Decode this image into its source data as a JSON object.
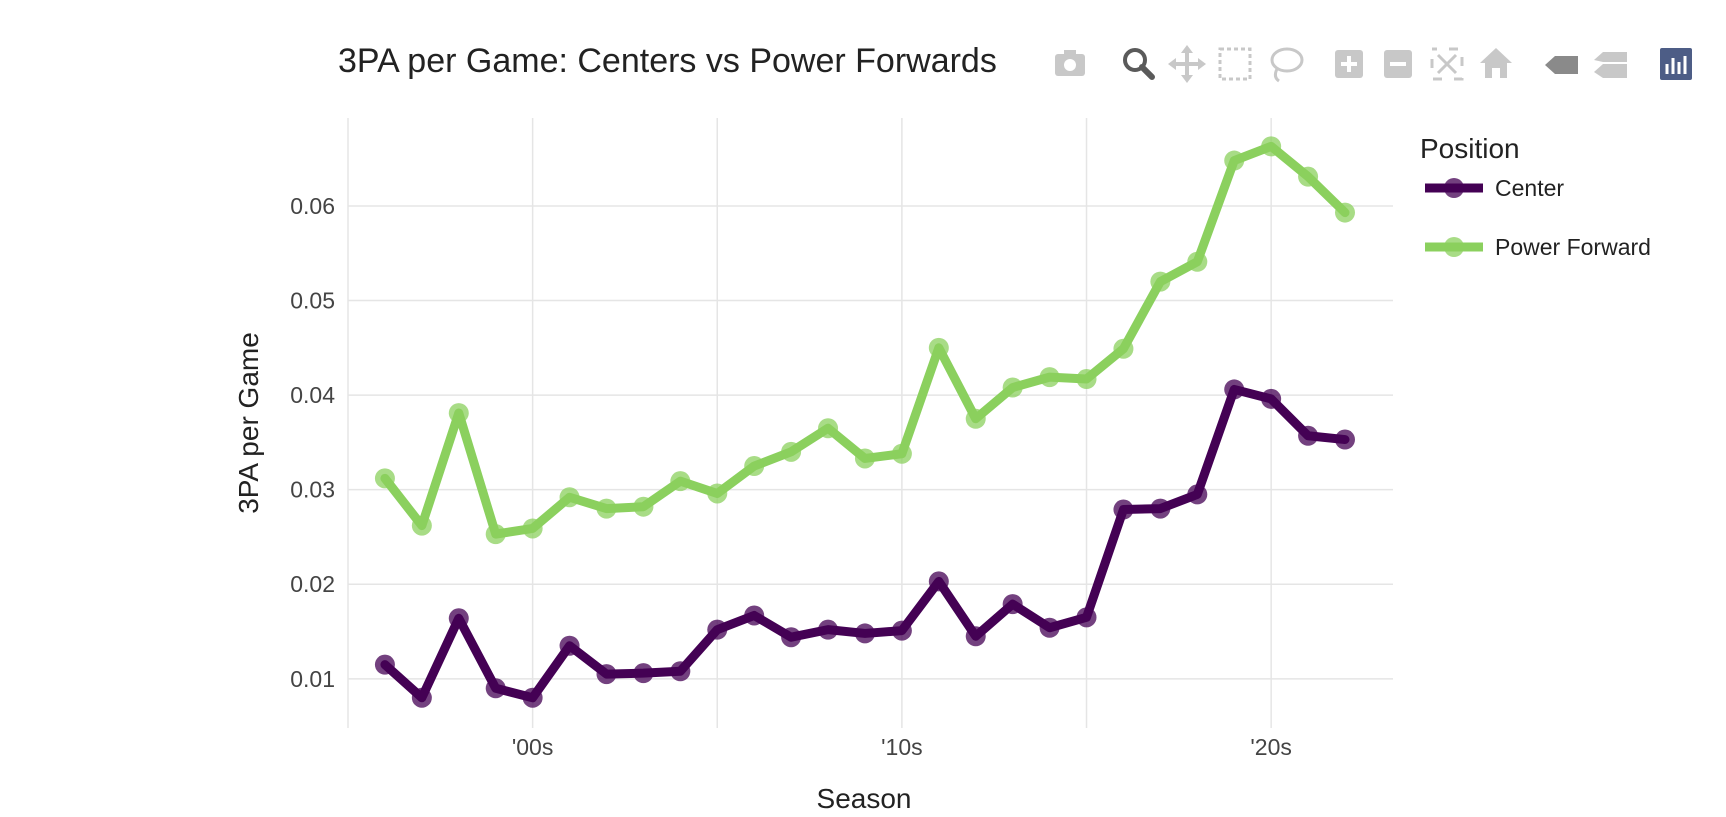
{
  "modebar": {
    "buttons": [
      {
        "name": "camera-icon",
        "title": "Download plot as a png"
      },
      {
        "name": "zoom-icon",
        "title": "Zoom"
      },
      {
        "name": "pan-icon",
        "title": "Pan"
      },
      {
        "name": "box-select-icon",
        "title": "Box Select"
      },
      {
        "name": "lasso-select-icon",
        "title": "Lasso Select"
      },
      {
        "name": "zoom-in-icon",
        "title": "Zoom in"
      },
      {
        "name": "zoom-out-icon",
        "title": "Zoom out"
      },
      {
        "name": "autoscale-icon",
        "title": "Autoscale"
      },
      {
        "name": "reset-axes-icon",
        "title": "Reset axes"
      },
      {
        "name": "hover-closest-icon",
        "title": "Show closest data on hover"
      },
      {
        "name": "hover-compare-icon",
        "title": "Compare data on hover"
      },
      {
        "name": "plotly-logo-icon",
        "title": "Produced with Plotly"
      }
    ]
  },
  "chart_data": {
    "type": "line",
    "title": "3PA per Game: Centers vs Power Forwards",
    "xlabel": "Season",
    "ylabel": "3PA per Game",
    "x": [
      1996,
      1997,
      1998,
      1999,
      2000,
      2001,
      2002,
      2003,
      2004,
      2005,
      2006,
      2007,
      2008,
      2009,
      2010,
      2011,
      2012,
      2013,
      2014,
      2015,
      2016,
      2017,
      2018,
      2019,
      2020,
      2021,
      2022
    ],
    "xlim": [
      1995,
      2023.3
    ],
    "ylim": [
      0.0048,
      0.0693
    ],
    "x_ticks": [
      {
        "value": 2000,
        "label": "'00s"
      },
      {
        "value": 2010,
        "label": "'10s"
      },
      {
        "value": 2020,
        "label": "'20s"
      }
    ],
    "x_grid": [
      1995,
      2000,
      2005,
      2010,
      2015,
      2020
    ],
    "y_ticks": [
      {
        "value": 0.01,
        "label": "0.01"
      },
      {
        "value": 0.02,
        "label": "0.02"
      },
      {
        "value": 0.03,
        "label": "0.03"
      },
      {
        "value": 0.04,
        "label": "0.04"
      },
      {
        "value": 0.05,
        "label": "0.05"
      },
      {
        "value": 0.06,
        "label": "0.06"
      }
    ],
    "grid": true,
    "legend": {
      "title": "Position",
      "placement": "right"
    },
    "series": [
      {
        "name": "Center",
        "color": "#440154",
        "values": [
          0.0115,
          0.008,
          0.0164,
          0.009,
          0.008,
          0.0135,
          0.0105,
          0.0106,
          0.0108,
          0.0152,
          0.0167,
          0.0144,
          0.0152,
          0.0148,
          0.0151,
          0.0203,
          0.0145,
          0.0179,
          0.0154,
          0.0165,
          0.0279,
          0.028,
          0.0295,
          0.0406,
          0.0396,
          0.0357,
          0.0353
        ]
      },
      {
        "name": "Power Forward",
        "color": "#8BD05E",
        "values": [
          0.0312,
          0.0262,
          0.0381,
          0.0253,
          0.0259,
          0.0292,
          0.028,
          0.0282,
          0.0309,
          0.0296,
          0.0325,
          0.034,
          0.0365,
          0.0333,
          0.0338,
          0.045,
          0.0375,
          0.0408,
          0.0419,
          0.0417,
          0.0449,
          0.052,
          0.0541,
          0.0648,
          0.0663,
          0.0631,
          0.0593
        ]
      }
    ]
  }
}
